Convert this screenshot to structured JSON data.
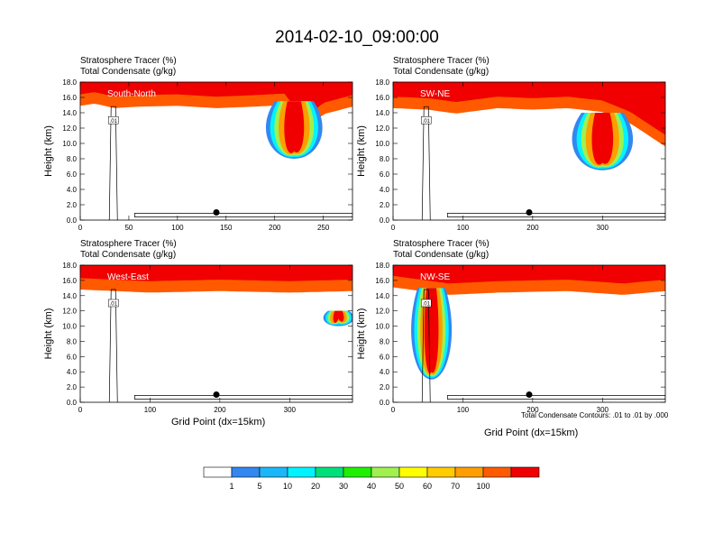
{
  "title": "2014-02-10_09:00:00",
  "colorbar": {
    "levels": [
      "1",
      "5",
      "10",
      "20",
      "30",
      "40",
      "50",
      "60",
      "70",
      "100"
    ],
    "colors": [
      "#ffffff",
      "#3288f0",
      "#1ab8f8",
      "#00f4ff",
      "#00e07a",
      "#20f000",
      "#a0f050",
      "#ffff00",
      "#ffcc00",
      "#ff9e00",
      "#ff5a00",
      "#f00000"
    ]
  },
  "chart_data": [
    {
      "type": "heatmap",
      "title": "Stratosphere Tracer   (%)",
      "subtitle": "Total Condensate   (g/kg)",
      "region_label": "South-North",
      "ylabel": "Height (km)",
      "xlabel": "",
      "xlim": [
        0,
        280
      ],
      "xticks": [
        "0",
        "50",
        "100",
        "150",
        "200",
        "250"
      ],
      "xtick_values": [
        0,
        50,
        100,
        150,
        200,
        250
      ],
      "ylim": [
        0,
        18
      ],
      "yticks": [
        "0.0",
        "2.0",
        "4.0",
        "6.0",
        "8.0",
        "10.0",
        "12.0",
        "14.0",
        "16.0",
        "18.0"
      ],
      "tracer_edge_profile": [
        [
          0,
          15.3
        ],
        [
          15,
          15.6
        ],
        [
          35,
          15.0
        ],
        [
          60,
          15.2
        ],
        [
          100,
          15.3
        ],
        [
          140,
          15.0
        ],
        [
          180,
          15.2
        ],
        [
          210,
          15.4
        ],
        [
          230,
          12.0
        ],
        [
          250,
          14.2
        ],
        [
          280,
          15.2
        ]
      ],
      "intrusion": {
        "x_center": 220,
        "y_bottom": 8.0,
        "y_top": 15.5,
        "width": 40
      },
      "contour_label": ".01",
      "marker": [
        140,
        1.0
      ],
      "note": ""
    },
    {
      "type": "heatmap",
      "title": "Stratosphere Tracer   (%)",
      "subtitle": "Total Condensate   (g/kg)",
      "region_label": "SW-NE",
      "ylabel": "Height (km)",
      "xlabel": "",
      "xlim": [
        0,
        390
      ],
      "xticks": [
        "0",
        "100",
        "200",
        "300"
      ],
      "xtick_values": [
        0,
        100,
        200,
        300
      ],
      "ylim": [
        0,
        18
      ],
      "yticks": [
        "0.0",
        "2.0",
        "4.0",
        "6.0",
        "8.0",
        "10.0",
        "12.0",
        "14.0",
        "16.0",
        "18.0"
      ],
      "tracer_edge_profile": [
        [
          0,
          15.0
        ],
        [
          50,
          14.8
        ],
        [
          90,
          14.3
        ],
        [
          150,
          15.0
        ],
        [
          200,
          14.8
        ],
        [
          250,
          15.0
        ],
        [
          300,
          14.5
        ],
        [
          340,
          13.0
        ],
        [
          390,
          10.0
        ]
      ],
      "intrusion": {
        "x_center": 300,
        "y_bottom": 6.5,
        "y_top": 14.0,
        "width": 60
      },
      "contour_label": ".01",
      "marker": [
        195,
        1.0
      ],
      "note": ""
    },
    {
      "type": "heatmap",
      "title": "Stratosphere Tracer   (%)",
      "subtitle": "Total Condensate   (g/kg)",
      "region_label": "West-East",
      "ylabel": "Height (km)",
      "xlabel": "Grid Point (dx=15km)",
      "xlim": [
        0,
        390
      ],
      "xticks": [
        "0",
        "100",
        "200",
        "300"
      ],
      "xtick_values": [
        0,
        100,
        200,
        300
      ],
      "ylim": [
        0,
        18
      ],
      "yticks": [
        "0.0",
        "2.0",
        "4.0",
        "6.0",
        "8.0",
        "10.0",
        "12.0",
        "14.0",
        "16.0",
        "18.0"
      ],
      "tracer_edge_profile": [
        [
          0,
          15.2
        ],
        [
          50,
          15.0
        ],
        [
          100,
          14.8
        ],
        [
          200,
          15.0
        ],
        [
          300,
          14.8
        ],
        [
          390,
          15.0
        ]
      ],
      "intrusion": {
        "x_center": 370,
        "y_bottom": 10.0,
        "y_top": 12.0,
        "width": 30
      },
      "contour_label": ".01",
      "marker": [
        195,
        1.0
      ],
      "note": ""
    },
    {
      "type": "heatmap",
      "title": "Stratosphere Tracer   (%)",
      "subtitle": "Total Condensate   (g/kg)",
      "region_label": "NW-SE",
      "ylabel": "Height (km)",
      "xlabel": "Grid Point (dx=15km)",
      "xlim": [
        0,
        390
      ],
      "xticks": [
        "0",
        "100",
        "200",
        "300"
      ],
      "xtick_values": [
        0,
        100,
        200,
        300
      ],
      "ylim": [
        0,
        18
      ],
      "yticks": [
        "0.0",
        "2.0",
        "4.0",
        "6.0",
        "8.0",
        "10.0",
        "12.0",
        "14.0",
        "16.0",
        "18.0"
      ],
      "tracer_edge_profile": [
        [
          0,
          15.5
        ],
        [
          80,
          14.5
        ],
        [
          150,
          14.8
        ],
        [
          250,
          15.0
        ],
        [
          330,
          14.5
        ],
        [
          390,
          15.0
        ]
      ],
      "intrusion": {
        "x_center": 55,
        "y_bottom": 3.0,
        "y_top": 15.0,
        "width": 40
      },
      "contour_label": ".01",
      "marker": [
        195,
        1.0
      ],
      "note": "Total Condensate Contours: .01 to .01 by .000"
    }
  ]
}
